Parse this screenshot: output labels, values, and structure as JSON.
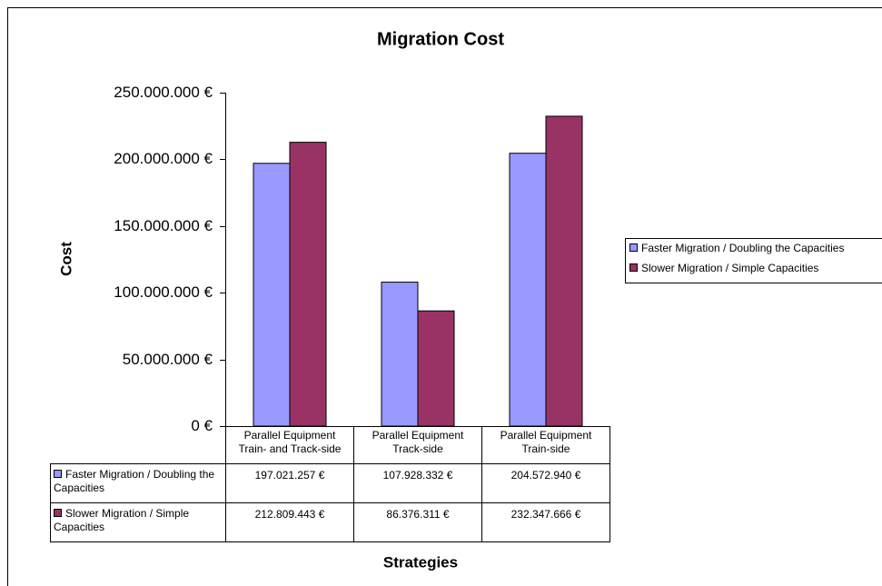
{
  "chart_data": {
    "type": "bar",
    "title": "Migration Cost",
    "x_label": "Strategies",
    "y_label": "Cost",
    "categories": [
      "Parallel Equipment\nTrain- and Track-side",
      "Parallel Equipment\nTrack-side",
      "Parallel Equipment\nTrain-side"
    ],
    "series": [
      {
        "name": "Faster Migration / Doubling the Capacities",
        "color": "#9999ff",
        "values": [
          197021257,
          107928332,
          204572940
        ],
        "value_labels": [
          "197.021.257 €",
          "107.928.332 €",
          "204.572.940 €"
        ]
      },
      {
        "name": "Slower Migration / Simple Capacities",
        "color": "#993366",
        "values": [
          212809443,
          86376311,
          232347666
        ],
        "value_labels": [
          "212.809.443 €",
          "86.376.311 €",
          "232.347.666 €"
        ]
      }
    ],
    "ylim": [
      0,
      250000000
    ],
    "yticks": [
      {
        "value": 0,
        "label": "0 €"
      },
      {
        "value": 50000000,
        "label": "50.000.000 €"
      },
      {
        "value": 100000000,
        "label": "100.000.000 €"
      },
      {
        "value": 150000000,
        "label": "150.000.000 €"
      },
      {
        "value": 200000000,
        "label": "200.000.000 €"
      },
      {
        "value": 250000000,
        "label": "250.000.000 €"
      }
    ],
    "legend": "right",
    "grid": false
  }
}
